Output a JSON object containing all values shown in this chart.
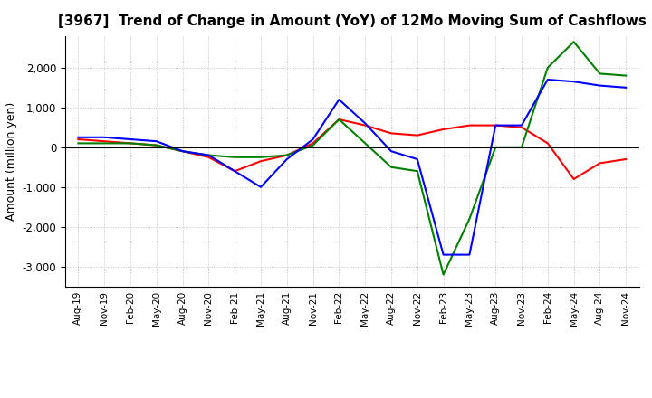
{
  "title": "[3967]  Trend of Change in Amount (YoY) of 12Mo Moving Sum of Cashflows",
  "ylabel": "Amount (million yen)",
  "x_labels": [
    "Aug-19",
    "Nov-19",
    "Feb-20",
    "May-20",
    "Aug-20",
    "Nov-20",
    "Feb-21",
    "May-21",
    "Aug-21",
    "Nov-21",
    "Feb-22",
    "May-22",
    "Aug-22",
    "Nov-22",
    "Feb-23",
    "May-23",
    "Aug-23",
    "Nov-23",
    "Feb-24",
    "May-24",
    "Aug-24",
    "Nov-24"
  ],
  "operating": [
    200,
    150,
    100,
    50,
    -100,
    -250,
    -600,
    -350,
    -200,
    100,
    700,
    550,
    350,
    300,
    450,
    550,
    550,
    500,
    100,
    -800,
    -400,
    -300
  ],
  "investing": [
    100,
    100,
    100,
    50,
    -100,
    -200,
    -250,
    -250,
    -200,
    50,
    700,
    100,
    -500,
    -600,
    -3200,
    -1800,
    0,
    0,
    2000,
    2650,
    1850,
    1800
  ],
  "free": [
    250,
    250,
    200,
    150,
    -100,
    -200,
    -600,
    -1000,
    -300,
    200,
    1200,
    600,
    -100,
    -300,
    -2700,
    -2700,
    550,
    550,
    1700,
    1650,
    1550,
    1500
  ],
  "operating_color": "#ff0000",
  "investing_color": "#008000",
  "free_color": "#0000ff",
  "ylim": [
    -3500,
    2800
  ],
  "yticks": [
    -3000,
    -2000,
    -1000,
    0,
    1000,
    2000
  ],
  "background_color": "#ffffff",
  "grid_color": "#888888",
  "title_fontsize": 11,
  "axis_fontsize": 9,
  "legend_fontsize": 9
}
